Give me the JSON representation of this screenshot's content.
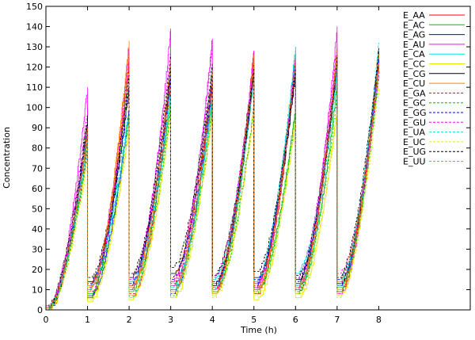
{
  "chart_data": {
    "type": "line",
    "xlabel": "Time (h)",
    "ylabel": "Concentration",
    "xlim": [
      0,
      10.2
    ],
    "ylim": [
      0,
      150
    ],
    "xticks": [
      0,
      1,
      2,
      3,
      4,
      5,
      6,
      7,
      8
    ],
    "yticks": [
      0,
      10,
      20,
      30,
      40,
      50,
      60,
      70,
      80,
      90,
      100,
      110,
      120,
      130,
      140,
      150
    ],
    "grid": false,
    "legend_position": "top-right",
    "cycle_starts": [
      0,
      1,
      2,
      3,
      4,
      5,
      6,
      7
    ],
    "cycle_length": 1,
    "series": [
      {
        "name": "E_AA",
        "color": "#ff0000",
        "dash": "solid",
        "starts": [
          0,
          6,
          7,
          10,
          12,
          8,
          11,
          9
        ],
        "peaks": [
          88,
          124,
          112,
          110,
          128,
          122,
          128,
          126
        ]
      },
      {
        "name": "E_AC",
        "color": "#00c000",
        "dash": "solid",
        "starts": [
          0,
          8,
          9,
          12,
          9,
          10,
          8,
          11
        ],
        "peaks": [
          85,
          118,
          105,
          104,
          118,
          100,
          112,
          126
        ]
      },
      {
        "name": "E_AG",
        "color": "#0000ff",
        "dash": "solid",
        "starts": [
          1,
          7,
          12,
          8,
          13,
          11,
          13,
          12
        ],
        "peaks": [
          90,
          100,
          116,
          114,
          120,
          120,
          122,
          124
        ]
      },
      {
        "name": "E_AU",
        "color": "#ff00ff",
        "dash": "solid",
        "starts": [
          2,
          10,
          10,
          14,
          10,
          13,
          10,
          8
        ],
        "peaks": [
          110,
          130,
          139,
          134,
          128,
          126,
          140,
          122
        ]
      },
      {
        "name": "E_CA",
        "color": "#00e0e0",
        "dash": "solid",
        "starts": [
          0,
          12,
          14,
          11,
          15,
          14,
          18,
          14
        ],
        "peaks": [
          80,
          98,
          108,
          104,
          122,
          130,
          118,
          120
        ]
      },
      {
        "name": "E_CC",
        "color": "#e6e600",
        "dash": "solid",
        "starts": [
          0,
          4,
          5,
          6,
          7,
          5,
          6,
          7
        ],
        "peaks": [
          78,
          92,
          98,
          100,
          100,
          96,
          100,
          118
        ]
      },
      {
        "name": "E_CG",
        "color": "#000000",
        "dash": "solid",
        "starts": [
          1,
          14,
          16,
          18,
          12,
          16,
          15,
          13
        ],
        "peaks": [
          94,
          110,
          118,
          118,
          120,
          118,
          122,
          128
        ]
      },
      {
        "name": "E_CU",
        "color": "#ff8000",
        "dash": "solid",
        "starts": [
          1,
          9,
          11,
          9,
          8,
          9,
          12,
          10
        ],
        "peaks": [
          86,
          133,
          122,
          116,
          124,
          124,
          130,
          126
        ]
      },
      {
        "name": "E_GA",
        "color": "#ff0000",
        "dash": "dashed",
        "starts": [
          0,
          11,
          8,
          13,
          11,
          12,
          9,
          13
        ],
        "peaks": [
          82,
          120,
          114,
          112,
          120,
          122,
          124,
          120
        ]
      },
      {
        "name": "E_GC",
        "color": "#00c000",
        "dash": "dashed",
        "starts": [
          0,
          6,
          10,
          7,
          9,
          8,
          10,
          9
        ],
        "peaks": [
          78,
          96,
          100,
          98,
          102,
          98,
          106,
          116
        ]
      },
      {
        "name": "E_GG",
        "color": "#0000ff",
        "dash": "dashed",
        "starts": [
          1,
          13,
          13,
          15,
          14,
          15,
          14,
          15
        ],
        "peaks": [
          92,
          112,
          120,
          116,
          118,
          124,
          126,
          124
        ]
      },
      {
        "name": "E_GU",
        "color": "#ff00ff",
        "dash": "dashed",
        "starts": [
          2,
          9,
          15,
          12,
          16,
          11,
          16,
          18
        ],
        "peaks": [
          100,
          128,
          130,
          132,
          124,
          128,
          132,
          116
        ]
      },
      {
        "name": "E_UA",
        "color": "#00e0e0",
        "dash": "dashed",
        "starts": [
          0,
          10,
          6,
          10,
          10,
          14,
          12,
          12
        ],
        "peaks": [
          84,
          102,
          110,
          108,
          116,
          130,
          120,
          132
        ]
      },
      {
        "name": "E_UC",
        "color": "#e6e600",
        "dash": "dashed",
        "starts": [
          0,
          5,
          7,
          8,
          6,
          7,
          8,
          6
        ],
        "peaks": [
          74,
          90,
          96,
          96,
          98,
          94,
          98,
          110
        ]
      },
      {
        "name": "E_UG",
        "color": "#000000",
        "dash": "dashed",
        "starts": [
          1,
          16,
          18,
          21,
          17,
          19,
          17,
          16
        ],
        "peaks": [
          96,
          116,
          125,
          122,
          122,
          120,
          126,
          130
        ]
      },
      {
        "name": "E_UU",
        "color": "#ff8000",
        "dash": "dashed",
        "starts": [
          1,
          12,
          12,
          16,
          13,
          10,
          11,
          14
        ],
        "peaks": [
          90,
          130,
          124,
          118,
          126,
          126,
          128,
          122
        ]
      }
    ]
  }
}
